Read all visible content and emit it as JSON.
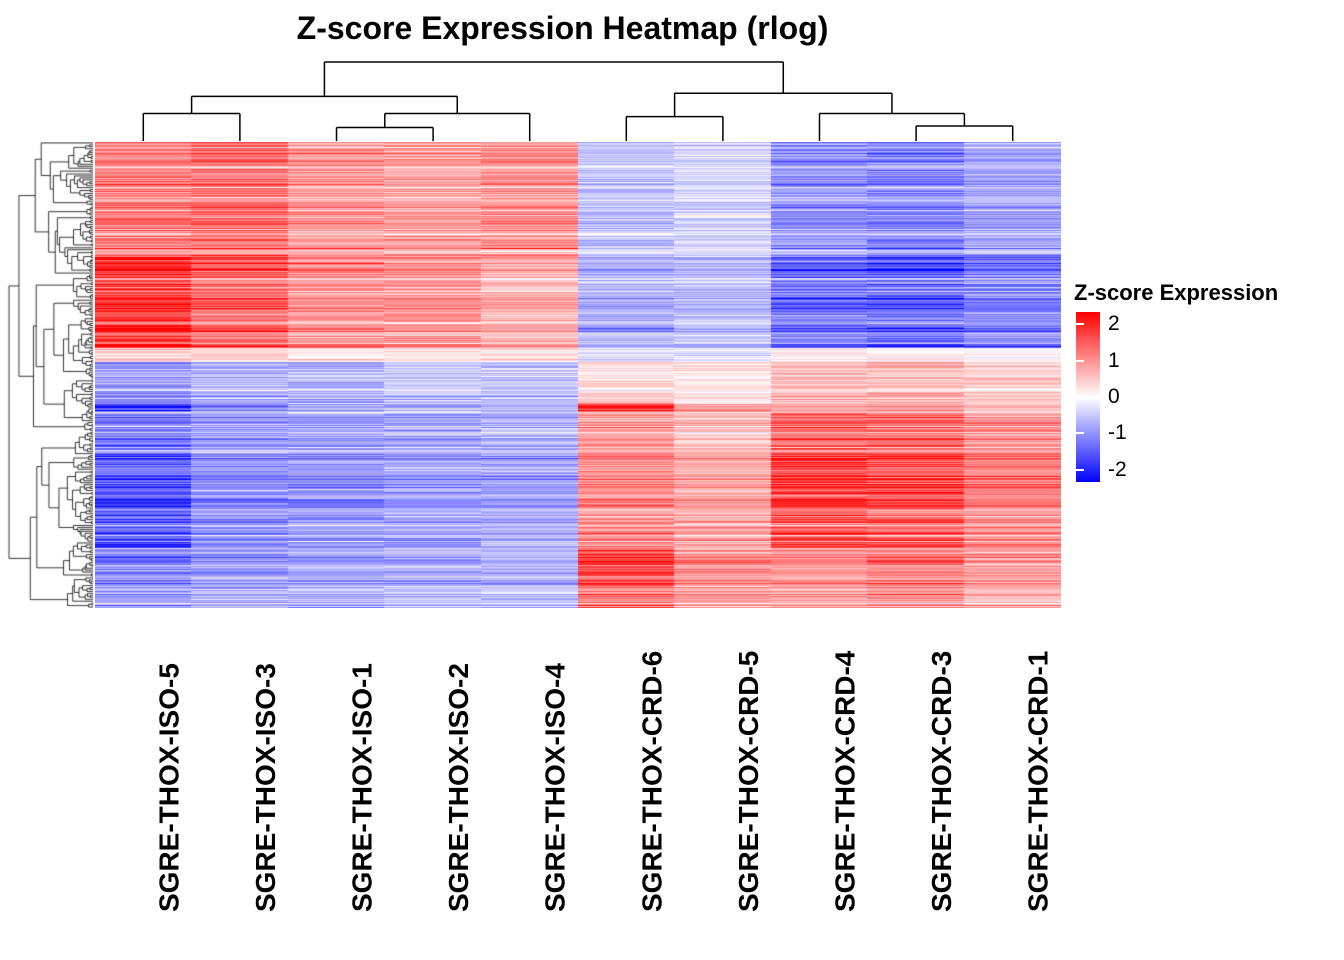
{
  "title": "Z-score Expression Heatmap (rlog)",
  "legend": {
    "title": "Z-score Expression",
    "ticks": [
      2,
      1,
      0,
      -1,
      -2
    ],
    "bar_range": [
      -2.33,
      2.33
    ],
    "color_max": "#FF0000",
    "color_mid": "#FFFFFF",
    "color_min": "#0000FF"
  },
  "chart_data": {
    "type": "heatmap",
    "title": "Z-score Expression Heatmap (rlog)",
    "colorbar_label": "Z-score Expression",
    "zlim": [
      -2,
      2
    ],
    "columns": [
      "SGRE-THOX-ISO-5",
      "SGRE-THOX-ISO-3",
      "SGRE-THOX-ISO-1",
      "SGRE-THOX-ISO-2",
      "SGRE-THOX-ISO-4",
      "SGRE-THOX-CRD-6",
      "SGRE-THOX-CRD-5",
      "SGRE-THOX-CRD-4",
      "SGRE-THOX-CRD-3",
      "SGRE-THOX-CRD-1"
    ],
    "column_dendrogram": {
      "h": 1.0,
      "c": [
        {
          "h": 0.56,
          "c": [
            {
              "h": 0.34,
              "c": [
                {
                  "leaf": 0
                },
                {
                  "leaf": 1
                }
              ]
            },
            {
              "h": 0.34,
              "c": [
                {
                  "h": 0.16,
                  "c": [
                    {
                      "leaf": 2
                    },
                    {
                      "leaf": 3
                    }
                  ]
                },
                {
                  "leaf": 4
                }
              ]
            }
          ]
        },
        {
          "h": 0.6,
          "c": [
            {
              "h": 0.3,
              "c": [
                {
                  "leaf": 5
                },
                {
                  "leaf": 6
                }
              ]
            },
            {
              "h": 0.34,
              "c": [
                {
                  "leaf": 7
                },
                {
                  "h": 0.18,
                  "c": [
                    {
                      "leaf": 8
                    },
                    {
                      "leaf": 9
                    }
                  ]
                }
              ]
            }
          ]
        }
      ]
    },
    "row_cluster_blocks": [
      {
        "row_fraction_start": 0.0,
        "row_fraction_end": 0.245,
        "mean_z_by_column": [
          1.05,
          1.2,
          0.85,
          0.8,
          0.9,
          -0.5,
          -0.35,
          -0.9,
          -1.0,
          -0.75
        ]
      },
      {
        "row_fraction_start": 0.245,
        "row_fraction_end": 0.44,
        "mean_z_by_column": [
          1.75,
          1.3,
          0.95,
          0.9,
          0.65,
          -0.7,
          -0.55,
          -1.2,
          -1.3,
          -1.0
        ]
      },
      {
        "row_fraction_start": 0.44,
        "row_fraction_end": 0.47,
        "mean_z_by_column": [
          0.45,
          0.4,
          0.2,
          0.25,
          0.3,
          -0.3,
          -0.2,
          0.15,
          0.1,
          0.0
        ]
      },
      {
        "row_fraction_start": 0.47,
        "row_fraction_end": 0.56,
        "mean_z_by_column": [
          -0.9,
          -0.7,
          -0.7,
          -0.6,
          -0.5,
          0.35,
          0.2,
          0.6,
          0.6,
          0.4
        ]
      },
      {
        "row_fraction_start": 0.56,
        "row_fraction_end": 0.578,
        "mean_z_by_column": [
          -1.6,
          -0.9,
          -0.8,
          -0.7,
          -0.6,
          1.9,
          0.9,
          0.7,
          0.8,
          0.6
        ]
      },
      {
        "row_fraction_start": 0.578,
        "row_fraction_end": 0.66,
        "mean_z_by_column": [
          -1.1,
          -0.85,
          -0.8,
          -0.75,
          -0.65,
          0.8,
          0.55,
          1.3,
          1.25,
          0.9
        ]
      },
      {
        "row_fraction_start": 0.66,
        "row_fraction_end": 0.76,
        "mean_z_by_column": [
          -1.3,
          -0.9,
          -0.85,
          -0.8,
          -0.75,
          0.9,
          0.7,
          1.6,
          1.5,
          1.1
        ]
      },
      {
        "row_fraction_start": 0.76,
        "row_fraction_end": 0.87,
        "mean_z_by_column": [
          -1.45,
          -0.95,
          -0.9,
          -0.85,
          -0.8,
          1.0,
          0.8,
          1.5,
          1.4,
          1.0
        ]
      },
      {
        "row_fraction_start": 0.87,
        "row_fraction_end": 0.93,
        "mean_z_by_column": [
          -1.0,
          -0.8,
          -0.75,
          -0.7,
          -0.65,
          1.6,
          0.9,
          0.9,
          1.1,
          0.8
        ]
      },
      {
        "row_fraction_start": 0.93,
        "row_fraction_end": 1.0,
        "mean_z_by_column": [
          -0.9,
          -0.75,
          -0.7,
          -0.65,
          -0.6,
          1.3,
          0.85,
          0.8,
          1.0,
          0.75
        ]
      }
    ],
    "render": {
      "rows": 466,
      "row_dendro_leaves": 240,
      "vmax": 2.2,
      "cell_noise": 0.3,
      "row_scale_sd": 0.5,
      "seed": 42
    }
  }
}
